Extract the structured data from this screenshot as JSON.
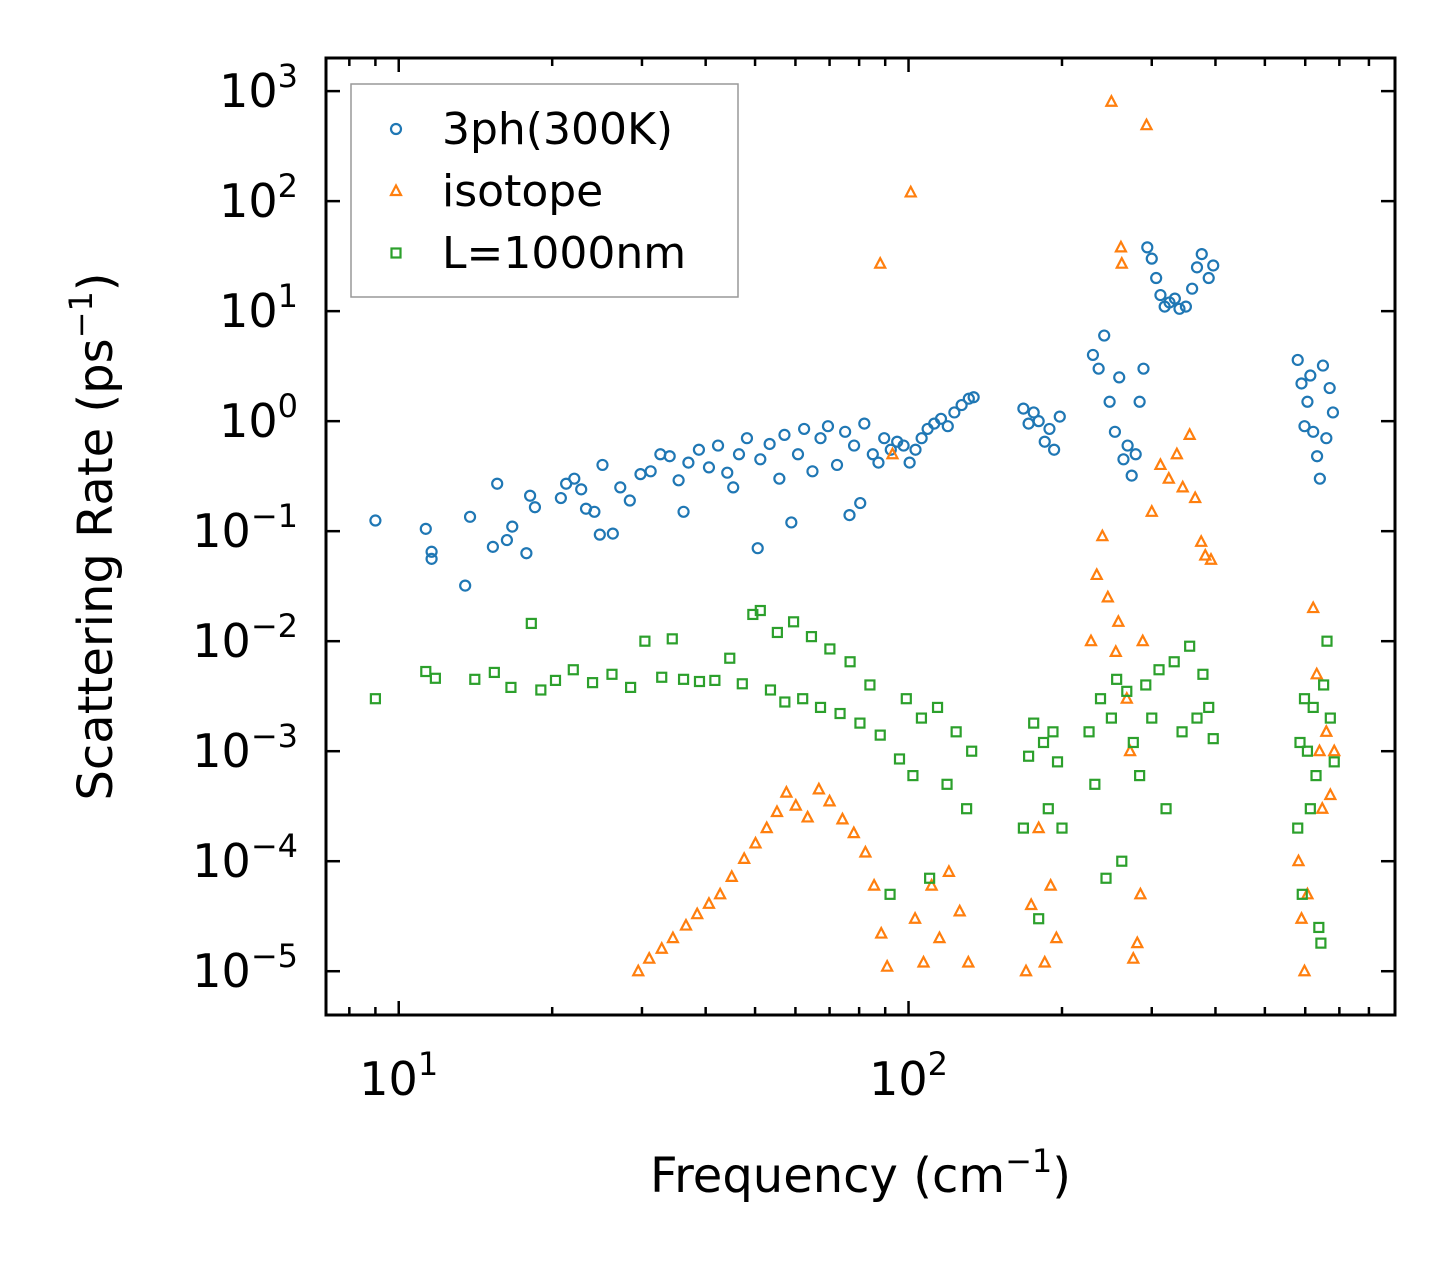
{
  "chart_data": {
    "type": "scatter",
    "title": "",
    "xlabel": "Frequency (cm",
    "xlabel_sup": "−1",
    "xlabel_close": ")",
    "ylabel": "Scattering Rate (ps",
    "ylabel_sup": "−1",
    "ylabel_close": ")",
    "xscale": "log",
    "yscale": "log",
    "xlim": [
      7.2,
      900
    ],
    "ylim": [
      4e-06,
      2000
    ],
    "x_ticks": [
      {
        "value": 10,
        "base": "10",
        "exp": "1"
      },
      {
        "value": 100,
        "base": "10",
        "exp": "2"
      }
    ],
    "y_ticks": [
      {
        "value": 1e-05,
        "base": "10",
        "exp": "−5"
      },
      {
        "value": 0.0001,
        "base": "10",
        "exp": "−4"
      },
      {
        "value": 0.001,
        "base": "10",
        "exp": "−3"
      },
      {
        "value": 0.01,
        "base": "10",
        "exp": "−2"
      },
      {
        "value": 0.1,
        "base": "10",
        "exp": "−1"
      },
      {
        "value": 1,
        "base": "10",
        "exp": "0"
      },
      {
        "value": 10,
        "base": "10",
        "exp": "1"
      },
      {
        "value": 100,
        "base": "10",
        "exp": "2"
      },
      {
        "value": 1000,
        "base": "10",
        "exp": "3"
      }
    ],
    "legend_position": "top-left",
    "series": [
      {
        "name": "3ph(300K)",
        "marker": "circle",
        "color": "#1f77b4",
        "points": [
          [
            9.0,
            0.125
          ],
          [
            11.3,
            0.105
          ],
          [
            11.6,
            0.065
          ],
          [
            11.6,
            0.056
          ],
          [
            13.5,
            0.032
          ],
          [
            13.8,
            0.135
          ],
          [
            15.3,
            0.072
          ],
          [
            15.6,
            0.27
          ],
          [
            16.3,
            0.083
          ],
          [
            16.7,
            0.11
          ],
          [
            17.8,
            0.063
          ],
          [
            18.1,
            0.21
          ],
          [
            18.5,
            0.165
          ],
          [
            20.8,
            0.2
          ],
          [
            21.3,
            0.27
          ],
          [
            22.1,
            0.3
          ],
          [
            22.8,
            0.24
          ],
          [
            23.3,
            0.16
          ],
          [
            24.2,
            0.15
          ],
          [
            24.8,
            0.093
          ],
          [
            25.1,
            0.4
          ],
          [
            26.3,
            0.095
          ],
          [
            27.2,
            0.25
          ],
          [
            28.4,
            0.19
          ],
          [
            29.8,
            0.33
          ],
          [
            31.2,
            0.35
          ],
          [
            32.6,
            0.5
          ],
          [
            34.0,
            0.48
          ],
          [
            35.4,
            0.29
          ],
          [
            36.2,
            0.15
          ],
          [
            37.0,
            0.42
          ],
          [
            38.8,
            0.55
          ],
          [
            40.6,
            0.38
          ],
          [
            42.3,
            0.6
          ],
          [
            44.1,
            0.34
          ],
          [
            45.3,
            0.25
          ],
          [
            46.5,
            0.5
          ],
          [
            48.2,
            0.7
          ],
          [
            50.6,
            0.07
          ],
          [
            51.2,
            0.45
          ],
          [
            53.4,
            0.62
          ],
          [
            55.8,
            0.3
          ],
          [
            57.1,
            0.75
          ],
          [
            58.9,
            0.12
          ],
          [
            60.7,
            0.5
          ],
          [
            62.4,
            0.85
          ],
          [
            64.8,
            0.35
          ],
          [
            67.2,
            0.7
          ],
          [
            69.5,
            0.9
          ],
          [
            72.4,
            0.4
          ],
          [
            75.1,
            0.8
          ],
          [
            76.6,
            0.14
          ],
          [
            78.2,
            0.6
          ],
          [
            80.4,
            0.18
          ],
          [
            81.9,
            0.95
          ],
          [
            85.1,
            0.5
          ],
          [
            87.3,
            0.42
          ],
          [
            89.6,
            0.7
          ],
          [
            92.3,
            0.55
          ],
          [
            95.0,
            0.65
          ],
          [
            97.8,
            0.6
          ],
          [
            100.5,
            0.42
          ],
          [
            103.2,
            0.55
          ],
          [
            106.1,
            0.7
          ],
          [
            109.0,
            0.85
          ],
          [
            112.3,
            0.95
          ],
          [
            115.8,
            1.05
          ],
          [
            119.4,
            0.9
          ],
          [
            123.0,
            1.2
          ],
          [
            127.1,
            1.4
          ],
          [
            131.3,
            1.6
          ],
          [
            134.2,
            1.65
          ],
          [
            168.0,
            1.3
          ],
          [
            172.0,
            0.95
          ],
          [
            176.0,
            1.2
          ],
          [
            180.0,
            1.0
          ],
          [
            185.0,
            0.65
          ],
          [
            189.0,
            0.85
          ],
          [
            193.0,
            0.55
          ],
          [
            198.0,
            1.1
          ],
          [
            230.0,
            4.0
          ],
          [
            236.0,
            3.0
          ],
          [
            242.0,
            6.0
          ],
          [
            248.0,
            1.5
          ],
          [
            254.0,
            0.8
          ],
          [
            259.0,
            2.5
          ],
          [
            264.0,
            0.45
          ],
          [
            269.0,
            0.6
          ],
          [
            274.0,
            0.32
          ],
          [
            279.0,
            0.5
          ],
          [
            284.0,
            1.5
          ],
          [
            289.0,
            3.0
          ],
          [
            294.0,
            38.0
          ],
          [
            300.0,
            30.0
          ],
          [
            306.0,
            20.0
          ],
          [
            312.0,
            14.0
          ],
          [
            318.0,
            11.0
          ],
          [
            325.0,
            12.0
          ],
          [
            333.0,
            13.0
          ],
          [
            340.0,
            10.5
          ],
          [
            350.0,
            11.0
          ],
          [
            360.0,
            16.0
          ],
          [
            368.0,
            25.0
          ],
          [
            376.0,
            33.0
          ],
          [
            388.0,
            20.0
          ],
          [
            396.0,
            26.0
          ],
          [
            580.0,
            3.6
          ],
          [
            590.0,
            2.2
          ],
          [
            598.0,
            0.9
          ],
          [
            606.0,
            1.5
          ],
          [
            614.0,
            2.6
          ],
          [
            622.0,
            0.8
          ],
          [
            633.0,
            0.48
          ],
          [
            641.0,
            0.3
          ],
          [
            650.0,
            3.2
          ],
          [
            660.0,
            0.7
          ],
          [
            670.0,
            2.0
          ],
          [
            680.0,
            1.2
          ]
        ]
      },
      {
        "name": "isotope",
        "marker": "triangle",
        "color": "#ff7f0e",
        "points": [
          [
            29.5,
            1e-05
          ],
          [
            31.0,
            1.3e-05
          ],
          [
            32.8,
            1.6e-05
          ],
          [
            34.5,
            2e-05
          ],
          [
            36.6,
            2.6e-05
          ],
          [
            38.5,
            3.3e-05
          ],
          [
            40.6,
            4.1e-05
          ],
          [
            42.7,
            5e-05
          ],
          [
            45.0,
            7.2e-05
          ],
          [
            47.6,
            0.000105
          ],
          [
            50.1,
            0.000145
          ],
          [
            52.7,
            0.0002
          ],
          [
            55.2,
            0.00028
          ],
          [
            57.6,
            0.00042
          ],
          [
            60.1,
            0.00032
          ],
          [
            63.4,
            0.00025
          ],
          [
            66.7,
            0.00045
          ],
          [
            70.0,
            0.00035
          ],
          [
            74.2,
            0.00024
          ],
          [
            78.1,
            0.00018
          ],
          [
            82.3,
            0.00012
          ],
          [
            85.6,
            6e-05
          ],
          [
            88.4,
            2.2e-05
          ],
          [
            90.8,
            1.1e-05
          ],
          [
            88.0,
            27.0
          ],
          [
            93.0,
            0.5
          ],
          [
            101.0,
            120.0
          ],
          [
            103.0,
            3e-05
          ],
          [
            107.0,
            1.2e-05
          ],
          [
            111.0,
            6e-05
          ],
          [
            115.0,
            2e-05
          ],
          [
            120.0,
            8e-05
          ],
          [
            126.0,
            3.5e-05
          ],
          [
            131.0,
            1.2e-05
          ],
          [
            170.0,
            1e-05
          ],
          [
            174.0,
            4e-05
          ],
          [
            180.0,
            0.0002
          ],
          [
            185.0,
            1.2e-05
          ],
          [
            190.0,
            6e-05
          ],
          [
            195.0,
            2e-05
          ],
          [
            228.0,
            0.01
          ],
          [
            234.0,
            0.04
          ],
          [
            240.0,
            0.09
          ],
          [
            246.0,
            0.025
          ],
          [
            250.0,
            800.0
          ],
          [
            255.0,
            0.008
          ],
          [
            258.0,
            0.015
          ],
          [
            261.0,
            38.0
          ],
          [
            262.0,
            27.0
          ],
          [
            268.0,
            0.003
          ],
          [
            272.0,
            0.001
          ],
          [
            276.0,
            1.3e-05
          ],
          [
            281.0,
            1.8e-05
          ],
          [
            285.0,
            5e-05
          ],
          [
            288.0,
            0.01
          ],
          [
            293.0,
            490.0
          ],
          [
            300.0,
            0.15
          ],
          [
            312.0,
            0.4
          ],
          [
            324.0,
            0.3
          ],
          [
            336.0,
            0.5
          ],
          [
            345.0,
            0.25
          ],
          [
            356.0,
            0.75
          ],
          [
            365.0,
            0.2
          ],
          [
            375.0,
            0.08
          ],
          [
            382.0,
            0.06
          ],
          [
            392.0,
            0.055
          ],
          [
            582.0,
            0.0001
          ],
          [
            590.0,
            3e-05
          ],
          [
            598.0,
            1e-05
          ],
          [
            606.0,
            5e-05
          ],
          [
            622.0,
            0.02
          ],
          [
            632.0,
            0.005
          ],
          [
            640.0,
            0.001
          ],
          [
            648.0,
            0.0003
          ],
          [
            660.0,
            0.0015
          ],
          [
            672.0,
            0.0004
          ],
          [
            684.0,
            0.001
          ]
        ]
      },
      {
        "name": "L=1000nm",
        "marker": "square",
        "color": "#2ca02c",
        "points": [
          [
            9.0,
            0.003
          ],
          [
            11.3,
            0.0053
          ],
          [
            11.8,
            0.0046
          ],
          [
            14.1,
            0.0045
          ],
          [
            15.4,
            0.0052
          ],
          [
            16.6,
            0.0038
          ],
          [
            18.2,
            0.0145
          ],
          [
            19.0,
            0.0036
          ],
          [
            20.3,
            0.0044
          ],
          [
            22.0,
            0.0055
          ],
          [
            24.0,
            0.0042
          ],
          [
            26.2,
            0.005
          ],
          [
            28.5,
            0.0038
          ],
          [
            30.4,
            0.01
          ],
          [
            32.8,
            0.0047
          ],
          [
            34.4,
            0.0105
          ],
          [
            36.2,
            0.0045
          ],
          [
            38.9,
            0.0043
          ],
          [
            41.7,
            0.0044
          ],
          [
            44.6,
            0.007
          ],
          [
            47.2,
            0.0041
          ],
          [
            49.5,
            0.0175
          ],
          [
            51.2,
            0.019
          ],
          [
            53.6,
            0.0036
          ],
          [
            55.3,
            0.012
          ],
          [
            57.2,
            0.0028
          ],
          [
            59.5,
            0.015
          ],
          [
            62.0,
            0.003
          ],
          [
            64.5,
            0.011
          ],
          [
            67.2,
            0.0025
          ],
          [
            70.1,
            0.0085
          ],
          [
            73.4,
            0.0022
          ],
          [
            76.8,
            0.0065
          ],
          [
            80.3,
            0.0018
          ],
          [
            84.0,
            0.004
          ],
          [
            88.0,
            0.0014
          ],
          [
            92.0,
            5e-05
          ],
          [
            96.0,
            0.00085
          ],
          [
            99.0,
            0.003
          ],
          [
            102.0,
            0.0006
          ],
          [
            106.0,
            0.002
          ],
          [
            110.0,
            7e-05
          ],
          [
            114.0,
            0.0025
          ],
          [
            119.0,
            0.0005
          ],
          [
            124.0,
            0.0015
          ],
          [
            130.0,
            0.0003
          ],
          [
            133.0,
            0.001
          ],
          [
            168.0,
            0.0002
          ],
          [
            172.0,
            0.0009
          ],
          [
            176.0,
            0.0018
          ],
          [
            180.0,
            3e-05
          ],
          [
            184.0,
            0.0012
          ],
          [
            188.0,
            0.0003
          ],
          [
            192.0,
            0.0015
          ],
          [
            196.0,
            0.0008
          ],
          [
            200.0,
            0.0002
          ],
          [
            226.0,
            0.0015
          ],
          [
            232.0,
            0.0005
          ],
          [
            238.0,
            0.003
          ],
          [
            244.0,
            7e-05
          ],
          [
            250.0,
            0.002
          ],
          [
            256.0,
            0.0045
          ],
          [
            262.0,
            0.0001
          ],
          [
            268.0,
            0.0035
          ],
          [
            276.0,
            0.0012
          ],
          [
            284.0,
            0.0006
          ],
          [
            292.0,
            0.004
          ],
          [
            300.0,
            0.002
          ],
          [
            310.0,
            0.0055
          ],
          [
            320.0,
            0.0003
          ],
          [
            332.0,
            0.0065
          ],
          [
            344.0,
            0.0015
          ],
          [
            356.0,
            0.009
          ],
          [
            368.0,
            0.002
          ],
          [
            378.0,
            0.005
          ],
          [
            388.0,
            0.0025
          ],
          [
            396.0,
            0.0013
          ],
          [
            580.0,
            0.0002
          ],
          [
            586.0,
            0.0012
          ],
          [
            592.0,
            5e-05
          ],
          [
            598.0,
            0.003
          ],
          [
            606.0,
            0.001
          ],
          [
            614.0,
            0.0003
          ],
          [
            622.0,
            0.0025
          ],
          [
            630.0,
            0.0006
          ],
          [
            638.0,
            2.5e-05
          ],
          [
            644.0,
            1.8e-05
          ],
          [
            652.0,
            0.004
          ],
          [
            662.0,
            0.01
          ],
          [
            672.0,
            0.002
          ],
          [
            684.0,
            0.0008
          ]
        ]
      }
    ]
  }
}
